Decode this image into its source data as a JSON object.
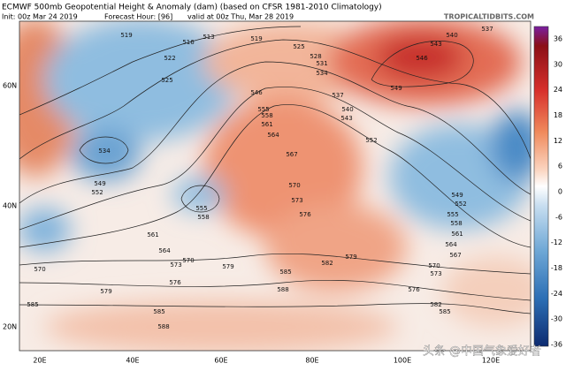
{
  "header": {
    "title": "ECMWF 500mb Geopotential Height & Anomaly (dam) (based on CFSR 1981-2010 Climatology)",
    "init": "Init: 00z Mar 24 2019",
    "forecast_hour": "Forecast Hour: [96]",
    "valid": "valid at 00z Thu, Mar 28 2019",
    "site": "TROPICALTIDBITS.COM"
  },
  "latitude_labels": [
    "60N",
    "40N",
    "20N"
  ],
  "longitude_labels": [
    "20E",
    "40E",
    "60E",
    "80E",
    "100E",
    "120E"
  ],
  "colorbar_ticks": [
    "36",
    "30",
    "24",
    "18",
    "12",
    "6",
    "0",
    "-6",
    "-12",
    "-18",
    "-24",
    "-30",
    "-36"
  ],
  "contour_labels": [
    "519",
    "516",
    "513",
    "519",
    "522",
    "525",
    "528",
    "531",
    "534",
    "525",
    "546",
    "537",
    "540",
    "543",
    "549",
    "546",
    "543",
    "540",
    "537",
    "555",
    "558",
    "561",
    "564",
    "567",
    "552",
    "534",
    "549",
    "552",
    "555",
    "558",
    "549",
    "552",
    "555",
    "558",
    "561",
    "564",
    "567",
    "570",
    "573",
    "576",
    "579",
    "582",
    "585",
    "588",
    "576",
    "573",
    "570",
    "579",
    "576",
    "573",
    "570",
    "561",
    "564",
    "570",
    "579",
    "585",
    "582",
    "585",
    "585",
    "588"
  ],
  "watermark": "头条 @中国气象爱好者"
}
